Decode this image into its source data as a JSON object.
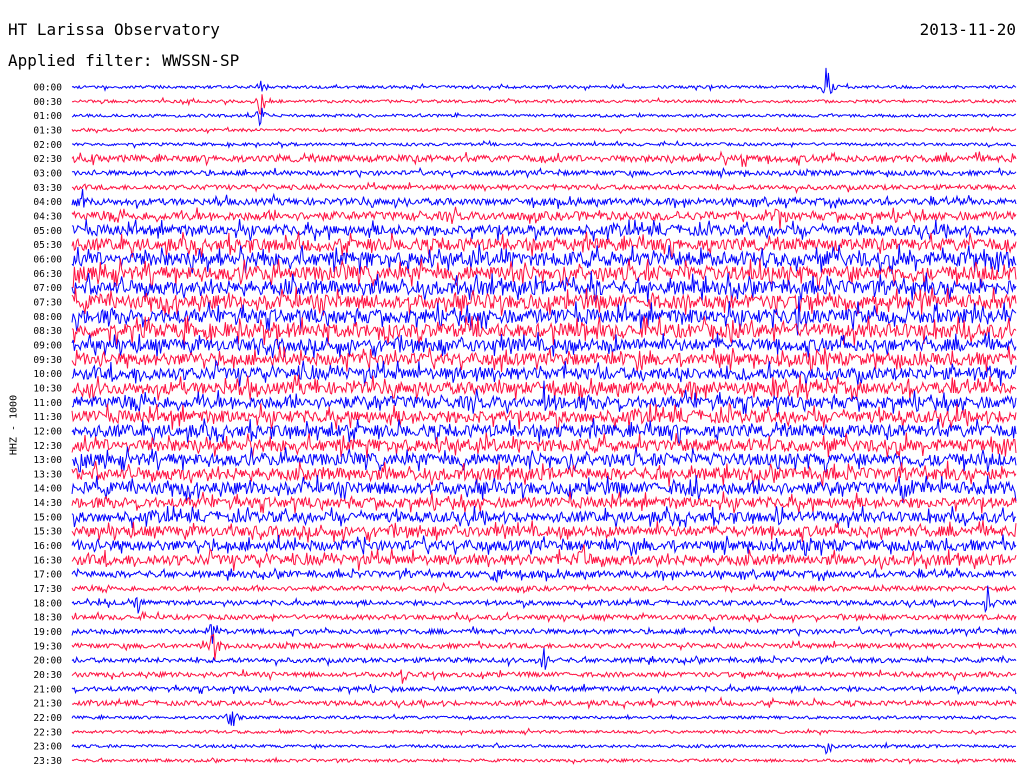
{
  "header": {
    "station": "HT Larissa Observatory",
    "date": "2013-11-20",
    "filter_label": "Applied filter:",
    "filter_value": "WWSSN-SP"
  },
  "chart_data": {
    "type": "line",
    "title": "HT Larissa Observatory",
    "ylabel": "HHZ - 1000",
    "xlabel": "",
    "row_labels": [
      "00:00",
      "00:30",
      "01:00",
      "01:30",
      "02:00",
      "02:30",
      "03:00",
      "03:30",
      "04:00",
      "04:30",
      "05:00",
      "05:30",
      "06:00",
      "06:30",
      "07:00",
      "07:30",
      "08:00",
      "08:30",
      "09:00",
      "09:30",
      "10:00",
      "10:30",
      "11:00",
      "11:30",
      "12:00",
      "12:30",
      "13:00",
      "13:30",
      "14:00",
      "14:30",
      "15:00",
      "15:30",
      "16:00",
      "16:30",
      "17:00",
      "17:30",
      "18:00",
      "18:30",
      "19:00",
      "19:30",
      "20:00",
      "20:30",
      "21:00",
      "21:30",
      "22:00",
      "22:30",
      "23:00",
      "23:30"
    ],
    "trace_colors": [
      "#0000ff",
      "#ff1040"
    ],
    "noise_level": [
      1,
      1,
      1,
      1,
      1,
      3,
      2,
      2,
      3,
      4,
      5,
      6,
      7,
      7,
      7,
      7,
      7,
      7,
      6,
      6,
      6,
      6,
      6,
      6,
      6,
      6,
      6,
      6,
      6,
      5,
      5,
      5,
      5,
      5,
      3,
      2,
      2,
      2,
      2,
      2,
      2,
      2,
      2,
      2,
      1,
      1,
      1,
      1
    ],
    "events": [
      {
        "row": 0,
        "x": 0.2,
        "amp": 4
      },
      {
        "row": 0,
        "x": 0.8,
        "amp": 14
      },
      {
        "row": 1,
        "x": 0.2,
        "amp": 10
      },
      {
        "row": 2,
        "x": 0.2,
        "amp": 6
      },
      {
        "row": 5,
        "x": 0.02,
        "amp": 4
      },
      {
        "row": 5,
        "x": 0.71,
        "amp": 8
      },
      {
        "row": 8,
        "x": 0.01,
        "amp": 6
      },
      {
        "row": 9,
        "x": 0.75,
        "amp": 8
      },
      {
        "row": 14,
        "x": 0.55,
        "amp": 10
      },
      {
        "row": 16,
        "x": 0.77,
        "amp": 10
      },
      {
        "row": 22,
        "x": 0.5,
        "amp": 9
      },
      {
        "row": 24,
        "x": 0.27,
        "amp": 6
      },
      {
        "row": 28,
        "x": 0.66,
        "amp": 8
      },
      {
        "row": 28,
        "x": 0.88,
        "amp": 8
      },
      {
        "row": 30,
        "x": 0.75,
        "amp": 8
      },
      {
        "row": 33,
        "x": 0.54,
        "amp": 8
      },
      {
        "row": 34,
        "x": 0.45,
        "amp": 8
      },
      {
        "row": 36,
        "x": 0.07,
        "amp": 8
      },
      {
        "row": 36,
        "x": 0.97,
        "amp": 8
      },
      {
        "row": 38,
        "x": 0.15,
        "amp": 8
      },
      {
        "row": 39,
        "x": 0.15,
        "amp": 12
      },
      {
        "row": 40,
        "x": 0.5,
        "amp": 10
      },
      {
        "row": 41,
        "x": 0.35,
        "amp": 6
      },
      {
        "row": 44,
        "x": 0.17,
        "amp": 10
      },
      {
        "row": 46,
        "x": 0.8,
        "amp": 5
      }
    ]
  }
}
